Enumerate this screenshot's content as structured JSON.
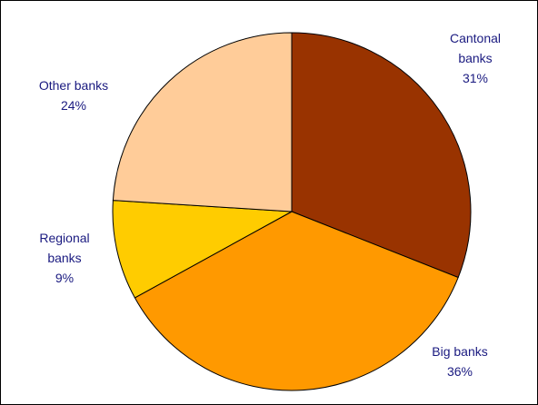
{
  "chart_data": {
    "type": "pie",
    "categories": [
      "Cantonal banks",
      "Big banks",
      "Regional banks",
      "Other banks"
    ],
    "values": [
      31,
      36,
      9,
      24
    ],
    "value_labels": [
      "31%",
      "36%",
      "9%",
      "24%"
    ],
    "colors": [
      "#993300",
      "#ff9900",
      "#ffcc00",
      "#ffcc99"
    ]
  }
}
